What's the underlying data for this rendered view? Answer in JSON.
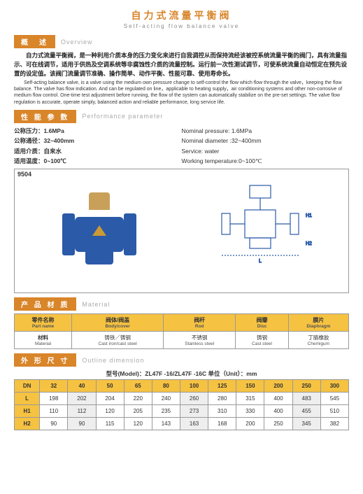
{
  "title_cn": "自力式流量平衡阀",
  "title_en": "Self-acting flow balance valve",
  "sections": {
    "overview": {
      "cn": "概　述",
      "en": "Overview"
    },
    "perf": {
      "cn": "性 能 参 数",
      "en": "Performance parameter"
    },
    "material": {
      "cn": "产 品 材 质",
      "en": "Material"
    },
    "outline": {
      "cn": "外 形 尺 寸",
      "en": "Outline dimension"
    }
  },
  "overview_cn": "自力式流量平衡阀，是一种利用介质本身的压力变化来进行自我调控从而保持流经该被控系统流量平衡的阀门，具有流量指示、可在线调节，适用于供热及空调系统等非腐蚀性介质的流量控制。运行前一次性测试调节，可使系统流量自动恒定在预先设置的设定值。该阀门流量调节准确、操作简单、动作平衡、性能可靠、使用寿命长。",
  "overview_en": "Self-acting balance valve, is a valve using the medium own pressure change to  self-control the flow which flow through the valve，keeping the flow balance. The valve has flow indication. And can be regulated on line，applicable to heating supply，air conditioning systems and other non-corrosive of medium flow control. One-time test adjustment before running, the flow of the system can automatically stabilize on the pre-set settings. The valve flow regulation is accurate, operate simply, balanced action and reliable performance, long service life.",
  "params_cn": [
    "公称压力：1.6MPa",
    "公称通径：32~400mm",
    "适用介质：自来水",
    "适用温度：0~100℃"
  ],
  "params_en": [
    "Nominal pressure: 1.6MPa",
    "Nominal diameter :32~400mm",
    "Service:  water",
    "Working temperature:0~100℃"
  ],
  "fig_num": "9504",
  "mat_headers": [
    {
      "cn": "零件名称",
      "en": "Part name"
    },
    {
      "cn": "阀体/阀盖",
      "en": "Body/cover"
    },
    {
      "cn": "阀杆",
      "en": "Rod"
    },
    {
      "cn": "阀瓣",
      "en": "Disc"
    },
    {
      "cn": "膜片",
      "en": "Diaphragm"
    }
  ],
  "mat_row_label": {
    "cn": "材料",
    "en": "Material"
  },
  "mat_values": [
    {
      "cn": "铸铁／铸钢",
      "en": "Cast iron/cast steel"
    },
    {
      "cn": "不锈钢",
      "en": "Stainless steel"
    },
    {
      "cn": "铸钢",
      "en": "Cast steel"
    },
    {
      "cn": "丁腈橡胶",
      "en": "Chemigum"
    }
  ],
  "model_line": "型号(Model)：ZL47F -16/ZL47F -16C  单位（Unit）：mm",
  "dim_header": [
    "DN",
    "32",
    "40",
    "50",
    "65",
    "80",
    "100",
    "125",
    "150",
    "200",
    "250",
    "300"
  ],
  "dim_rows": [
    [
      "L",
      "198",
      "202",
      "204",
      "220",
      "240",
      "260",
      "280",
      "315",
      "400",
      "483",
      "545"
    ],
    [
      "H1",
      "110",
      "112",
      "120",
      "205",
      "235",
      "273",
      "310",
      "330",
      "400",
      "455",
      "510"
    ],
    [
      "H2",
      "90",
      "90",
      "115",
      "120",
      "143",
      "163",
      "168",
      "200",
      "250",
      "345",
      "382"
    ]
  ]
}
